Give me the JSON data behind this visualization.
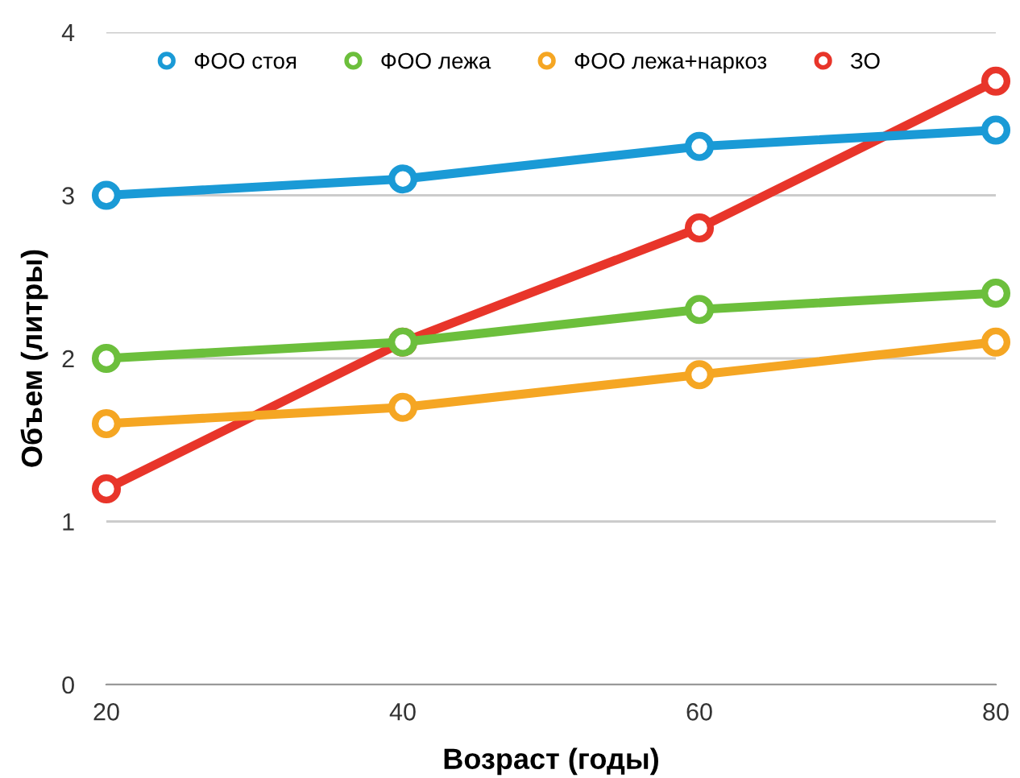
{
  "chart_data": {
    "type": "line",
    "xlabel": "Возраст (годы)",
    "ylabel": "Объем (литры)",
    "x": [
      20,
      40,
      60,
      80
    ],
    "series": [
      {
        "name": "ФОО стоя",
        "color": "#1a9ad6",
        "values": [
          3.0,
          3.1,
          3.3,
          3.4
        ]
      },
      {
        "name": "ФОО лежа",
        "color": "#6cbf3c",
        "values": [
          2.0,
          2.1,
          2.3,
          2.4
        ]
      },
      {
        "name": "ФОО лежа+наркоз",
        "color": "#f5a623",
        "values": [
          1.6,
          1.7,
          1.9,
          2.1
        ]
      },
      {
        "name": "ЗО",
        "color": "#e8352a",
        "values": [
          1.2,
          2.1,
          2.8,
          3.7
        ]
      }
    ],
    "xlim": [
      20,
      80
    ],
    "xticks": [
      20,
      40,
      60,
      80
    ],
    "ylim": [
      0,
      4
    ],
    "yticks": [
      0,
      1,
      2,
      3,
      4
    ],
    "grid": "y",
    "legend": "top left",
    "marker": "circle"
  }
}
